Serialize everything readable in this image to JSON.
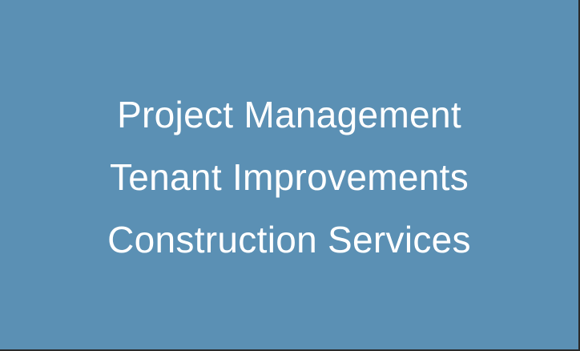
{
  "panel": {
    "background_color": "#5b90b4",
    "text_color": "#ffffff",
    "services": [
      "Project Management",
      "Tenant Improvements",
      "Construction Services"
    ]
  }
}
